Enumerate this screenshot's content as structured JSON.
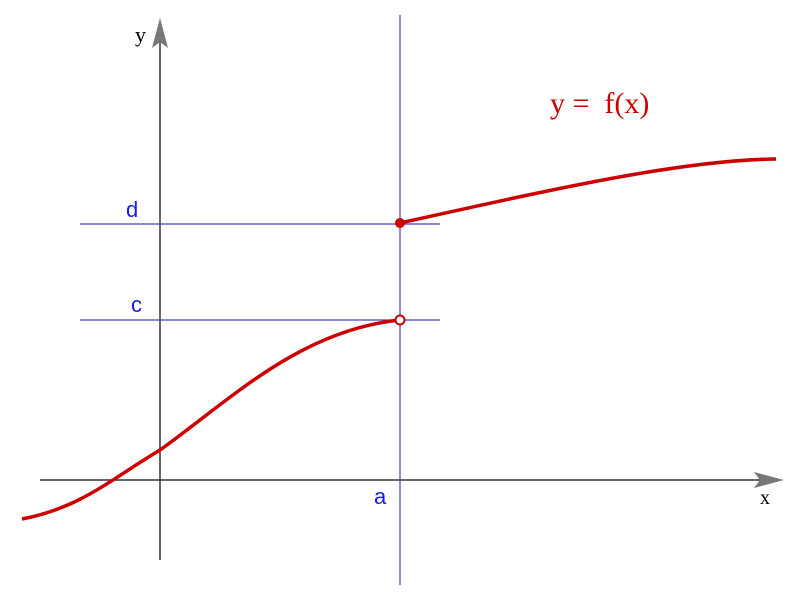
{
  "axes": {
    "x": "x",
    "y": "y"
  },
  "function_label": "y =  f(x)",
  "points": {
    "a": "a",
    "c": "c",
    "d": "d"
  }
}
